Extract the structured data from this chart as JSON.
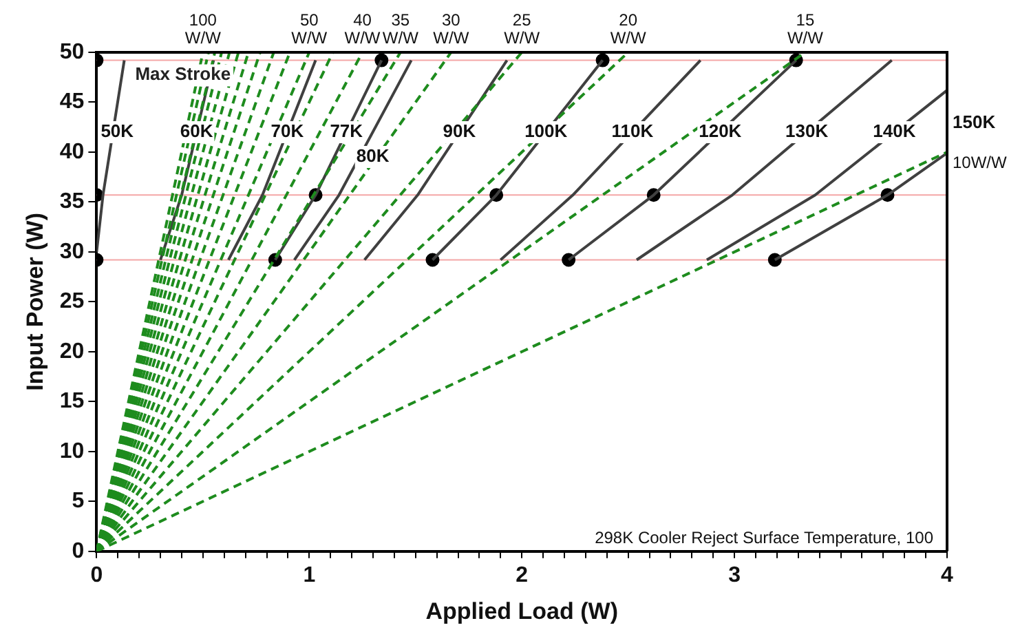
{
  "chart_data": {
    "type": "line",
    "xlabel": "Applied Load (W)",
    "ylabel": "Input Power (W)",
    "xlim": [
      0,
      4
    ],
    "ylim": [
      0,
      50
    ],
    "xticks": [
      0,
      {
        "value": 0.1,
        "label": null
      },
      {
        "value": 0.2,
        "label": null
      },
      {
        "value": 0.3,
        "label": null
      },
      {
        "value": 0.4,
        "label": null
      },
      {
        "value": 0.5,
        "label": null
      },
      {
        "value": 0.6,
        "label": null
      },
      {
        "value": 0.7,
        "label": null
      },
      {
        "value": 0.8,
        "label": null
      },
      {
        "value": 0.9,
        "label": null
      },
      1,
      {
        "value": 1.1,
        "label": null
      },
      {
        "value": 1.2,
        "label": null
      },
      {
        "value": 1.3,
        "label": null
      },
      {
        "value": 1.4,
        "label": null
      },
      {
        "value": 1.5,
        "label": null
      },
      {
        "value": 1.6,
        "label": null
      },
      {
        "value": 1.7,
        "label": null
      },
      {
        "value": 1.8,
        "label": null
      },
      {
        "value": 1.9,
        "label": null
      },
      2,
      {
        "value": 2.1,
        "label": null
      },
      {
        "value": 2.2,
        "label": null
      },
      {
        "value": 2.3,
        "label": null
      },
      {
        "value": 2.4,
        "label": null
      },
      {
        "value": 2.5,
        "label": null
      },
      {
        "value": 2.6,
        "label": null
      },
      {
        "value": 2.7,
        "label": null
      },
      {
        "value": 2.8,
        "label": null
      },
      {
        "value": 2.9,
        "label": null
      },
      3,
      {
        "value": 3.1,
        "label": null
      },
      {
        "value": 3.2,
        "label": null
      },
      {
        "value": 3.3,
        "label": null
      },
      {
        "value": 3.4,
        "label": null
      },
      {
        "value": 3.5,
        "label": null
      },
      {
        "value": 3.6,
        "label": null
      },
      {
        "value": 3.7,
        "label": null
      },
      {
        "value": 3.8,
        "label": null
      },
      {
        "value": 3.9,
        "label": null
      },
      4
    ],
    "yticks": [
      0,
      5,
      10,
      15,
      20,
      25,
      30,
      35,
      40,
      45,
      50
    ],
    "grid": false,
    "legend": false,
    "marker": "none",
    "series": [
      {
        "name": "100 W/W",
        "type": "line",
        "color": "#1e8c1e",
        "line_style": "dashed",
        "x": [
          0,
          0.5
        ],
        "values": [
          0,
          50
        ]
      },
      {
        "type": "line",
        "color": "#1e8c1e",
        "line_style": "dashed",
        "x": [
          0,
          0.526
        ],
        "values": [
          0,
          50
        ]
      },
      {
        "type": "line",
        "color": "#1e8c1e",
        "line_style": "dashed",
        "x": [
          0,
          0.556
        ],
        "values": [
          0,
          50
        ]
      },
      {
        "type": "line",
        "color": "#1e8c1e",
        "line_style": "dashed",
        "x": [
          0,
          0.588
        ],
        "values": [
          0,
          50
        ]
      },
      {
        "type": "line",
        "color": "#1e8c1e",
        "line_style": "dashed",
        "x": [
          0,
          0.625
        ],
        "values": [
          0,
          50
        ]
      },
      {
        "type": "line",
        "color": "#1e8c1e",
        "line_style": "dashed",
        "x": [
          0,
          0.667
        ],
        "values": [
          0,
          50
        ]
      },
      {
        "type": "line",
        "color": "#1e8c1e",
        "line_style": "dashed",
        "x": [
          0,
          0.714
        ],
        "values": [
          0,
          50
        ]
      },
      {
        "type": "line",
        "color": "#1e8c1e",
        "line_style": "dashed",
        "x": [
          0,
          0.769
        ],
        "values": [
          0,
          50
        ]
      },
      {
        "type": "line",
        "color": "#1e8c1e",
        "line_style": "dashed",
        "x": [
          0,
          0.833
        ],
        "values": [
          0,
          50
        ]
      },
      {
        "type": "line",
        "color": "#1e8c1e",
        "line_style": "dashed",
        "x": [
          0,
          0.909
        ],
        "values": [
          0,
          50
        ]
      },
      {
        "name": "50 W/W",
        "type": "line",
        "color": "#1e8c1e",
        "line_style": "dashed",
        "x": [
          0,
          1
        ],
        "values": [
          0,
          50
        ]
      },
      {
        "type": "line",
        "color": "#1e8c1e",
        "line_style": "dashed",
        "x": [
          0,
          1.111
        ],
        "values": [
          0,
          50
        ]
      },
      {
        "name": "40 W/W",
        "type": "line",
        "color": "#1e8c1e",
        "line_style": "dashed",
        "x": [
          0,
          1.25
        ],
        "values": [
          0,
          50
        ]
      },
      {
        "name": "35 W/W",
        "type": "line",
        "color": "#1e8c1e",
        "line_style": "dashed",
        "x": [
          0,
          1.429
        ],
        "values": [
          0,
          50
        ]
      },
      {
        "name": "30 W/W",
        "type": "line",
        "color": "#1e8c1e",
        "line_style": "dashed",
        "x": [
          0,
          1.667
        ],
        "values": [
          0,
          50
        ]
      },
      {
        "name": "25 W/W",
        "type": "line",
        "color": "#1e8c1e",
        "line_style": "dashed",
        "x": [
          0,
          2
        ],
        "values": [
          0,
          50
        ]
      },
      {
        "name": "20 W/W",
        "type": "line",
        "color": "#1e8c1e",
        "line_style": "dashed",
        "x": [
          0,
          2.5
        ],
        "values": [
          0,
          50
        ]
      },
      {
        "name": "15 W/W",
        "type": "line",
        "color": "#1e8c1e",
        "line_style": "dashed",
        "x": [
          0,
          3.333
        ],
        "values": [
          0,
          50
        ]
      },
      {
        "name": "10W/W",
        "type": "line",
        "color": "#1e8c1e",
        "line_style": "dashed",
        "x": [
          0,
          4
        ],
        "values": [
          0,
          40
        ]
      },
      {
        "name": "50K",
        "type": "line",
        "color": "#404040",
        "line_style": "solid",
        "x": [
          0,
          0.03,
          0.13
        ],
        "values": [
          30,
          35.7,
          49.2
        ]
      },
      {
        "name": "60K",
        "type": "line",
        "color": "#404040",
        "line_style": "solid",
        "x": [
          0.3,
          0.4,
          0.55
        ],
        "values": [
          29.2,
          35.7,
          49.2
        ]
      },
      {
        "name": "70K",
        "type": "line",
        "color": "#404040",
        "line_style": "solid",
        "x": [
          0.62,
          0.78,
          1.03
        ],
        "values": [
          29.2,
          35.7,
          49.2
        ]
      },
      {
        "name": "77K",
        "type": "line",
        "color": "#404040",
        "line_style": "solid",
        "x": [
          0.84,
          1.03,
          1.34
        ],
        "values": [
          29.2,
          35.7,
          49.2
        ]
      },
      {
        "name": "80K",
        "type": "line",
        "color": "#404040",
        "line_style": "solid",
        "x": [
          0.93,
          1.14,
          1.48
        ],
        "values": [
          29.2,
          35.7,
          49.2
        ]
      },
      {
        "name": "90K",
        "type": "line",
        "color": "#404040",
        "line_style": "solid",
        "x": [
          1.26,
          1.51,
          1.93
        ],
        "values": [
          29.2,
          35.7,
          49.2
        ]
      },
      {
        "name": "100K",
        "type": "line",
        "color": "#404040",
        "line_style": "solid",
        "x": [
          1.58,
          1.88,
          2.38
        ],
        "values": [
          29.2,
          35.7,
          49.2
        ]
      },
      {
        "name": "110K",
        "type": "line",
        "color": "#404040",
        "line_style": "solid",
        "x": [
          1.9,
          2.24,
          2.84
        ],
        "values": [
          29.2,
          35.7,
          49.2
        ]
      },
      {
        "name": "120K",
        "type": "line",
        "color": "#404040",
        "line_style": "solid",
        "x": [
          2.22,
          2.62,
          3.29
        ],
        "values": [
          29.2,
          35.7,
          49.2
        ]
      },
      {
        "name": "130K",
        "type": "line",
        "color": "#404040",
        "line_style": "solid",
        "x": [
          2.54,
          2.99,
          3.74
        ],
        "values": [
          29.2,
          35.7,
          49.2
        ]
      },
      {
        "name": "140K",
        "type": "line",
        "color": "#404040",
        "line_style": "solid",
        "x": [
          2.87,
          3.38,
          4
        ],
        "values": [
          29.2,
          35.7,
          46.2
        ]
      },
      {
        "name": "150K",
        "type": "line",
        "color": "#404040",
        "line_style": "solid",
        "x": [
          3.19,
          3.72,
          4
        ],
        "values": [
          29.2,
          35.7,
          39.9
        ]
      },
      {
        "type": "scatter",
        "marker": "circle",
        "color": "#000000",
        "x": [
          0,
          0,
          0,
          0.84,
          1.03,
          1.34,
          1.58,
          1.88,
          2.38,
          2.22,
          2.62,
          3.29,
          3.19,
          3.72
        ],
        "values": [
          49.2,
          35.7,
          29.2,
          29.2,
          35.7,
          49.2,
          29.2,
          35.7,
          49.2,
          29.2,
          35.7,
          49.2,
          29.2,
          35.7
        ]
      }
    ],
    "ref_lines": [
      {
        "axis": "y",
        "value": 49.2,
        "label": "Max Stroke",
        "color": "#f4a6a6"
      },
      {
        "axis": "y",
        "value": 35.7,
        "color": "#f4a6a6"
      },
      {
        "axis": "y",
        "value": 29.2,
        "color": "#f4a6a6"
      }
    ],
    "annotations": [
      "298K Cooler Reject Surface Temperature, 100"
    ]
  }
}
